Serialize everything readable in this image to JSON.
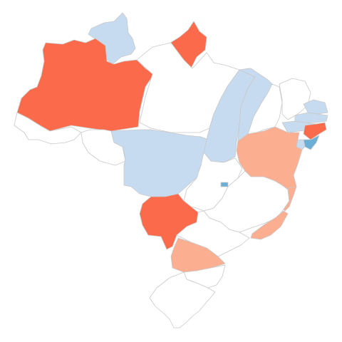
{
  "map": {
    "region": "Brazil",
    "type": "choropleth",
    "colors": {
      "none": "#ffffff",
      "strong_red": "#fb6a4a",
      "light_red": "#fcae91",
      "light_blue": "#c6dbef",
      "mid_blue": "#6baed6",
      "border": "#c9c9c9"
    },
    "states": [
      {
        "code": "RR",
        "category": "light_blue"
      },
      {
        "code": "AP",
        "category": "strong_red"
      },
      {
        "code": "AM",
        "category": "strong_red"
      },
      {
        "code": "PA",
        "category": "none"
      },
      {
        "code": "AC",
        "category": "none"
      },
      {
        "code": "RO",
        "category": "none"
      },
      {
        "code": "MT",
        "category": "light_blue"
      },
      {
        "code": "TO",
        "category": "light_blue"
      },
      {
        "code": "MA",
        "category": "light_blue"
      },
      {
        "code": "PI",
        "category": "none"
      },
      {
        "code": "CE",
        "category": "none"
      },
      {
        "code": "RN",
        "category": "light_blue"
      },
      {
        "code": "PB",
        "category": "light_blue"
      },
      {
        "code": "PE",
        "category": "light_blue"
      },
      {
        "code": "PE-E",
        "category": "strong_red"
      },
      {
        "code": "AL",
        "category": "mid_blue"
      },
      {
        "code": "SE",
        "category": "light_blue"
      },
      {
        "code": "BA",
        "category": "light_red"
      },
      {
        "code": "GO",
        "category": "none"
      },
      {
        "code": "DF",
        "category": "mid_blue"
      },
      {
        "code": "MG",
        "category": "none"
      },
      {
        "code": "ES",
        "category": "light_red"
      },
      {
        "code": "RJ",
        "category": "light_red"
      },
      {
        "code": "MS",
        "category": "strong_red"
      },
      {
        "code": "SP",
        "category": "none"
      },
      {
        "code": "PR",
        "category": "light_red"
      },
      {
        "code": "SC",
        "category": "none"
      },
      {
        "code": "RS",
        "category": "none"
      }
    ]
  }
}
